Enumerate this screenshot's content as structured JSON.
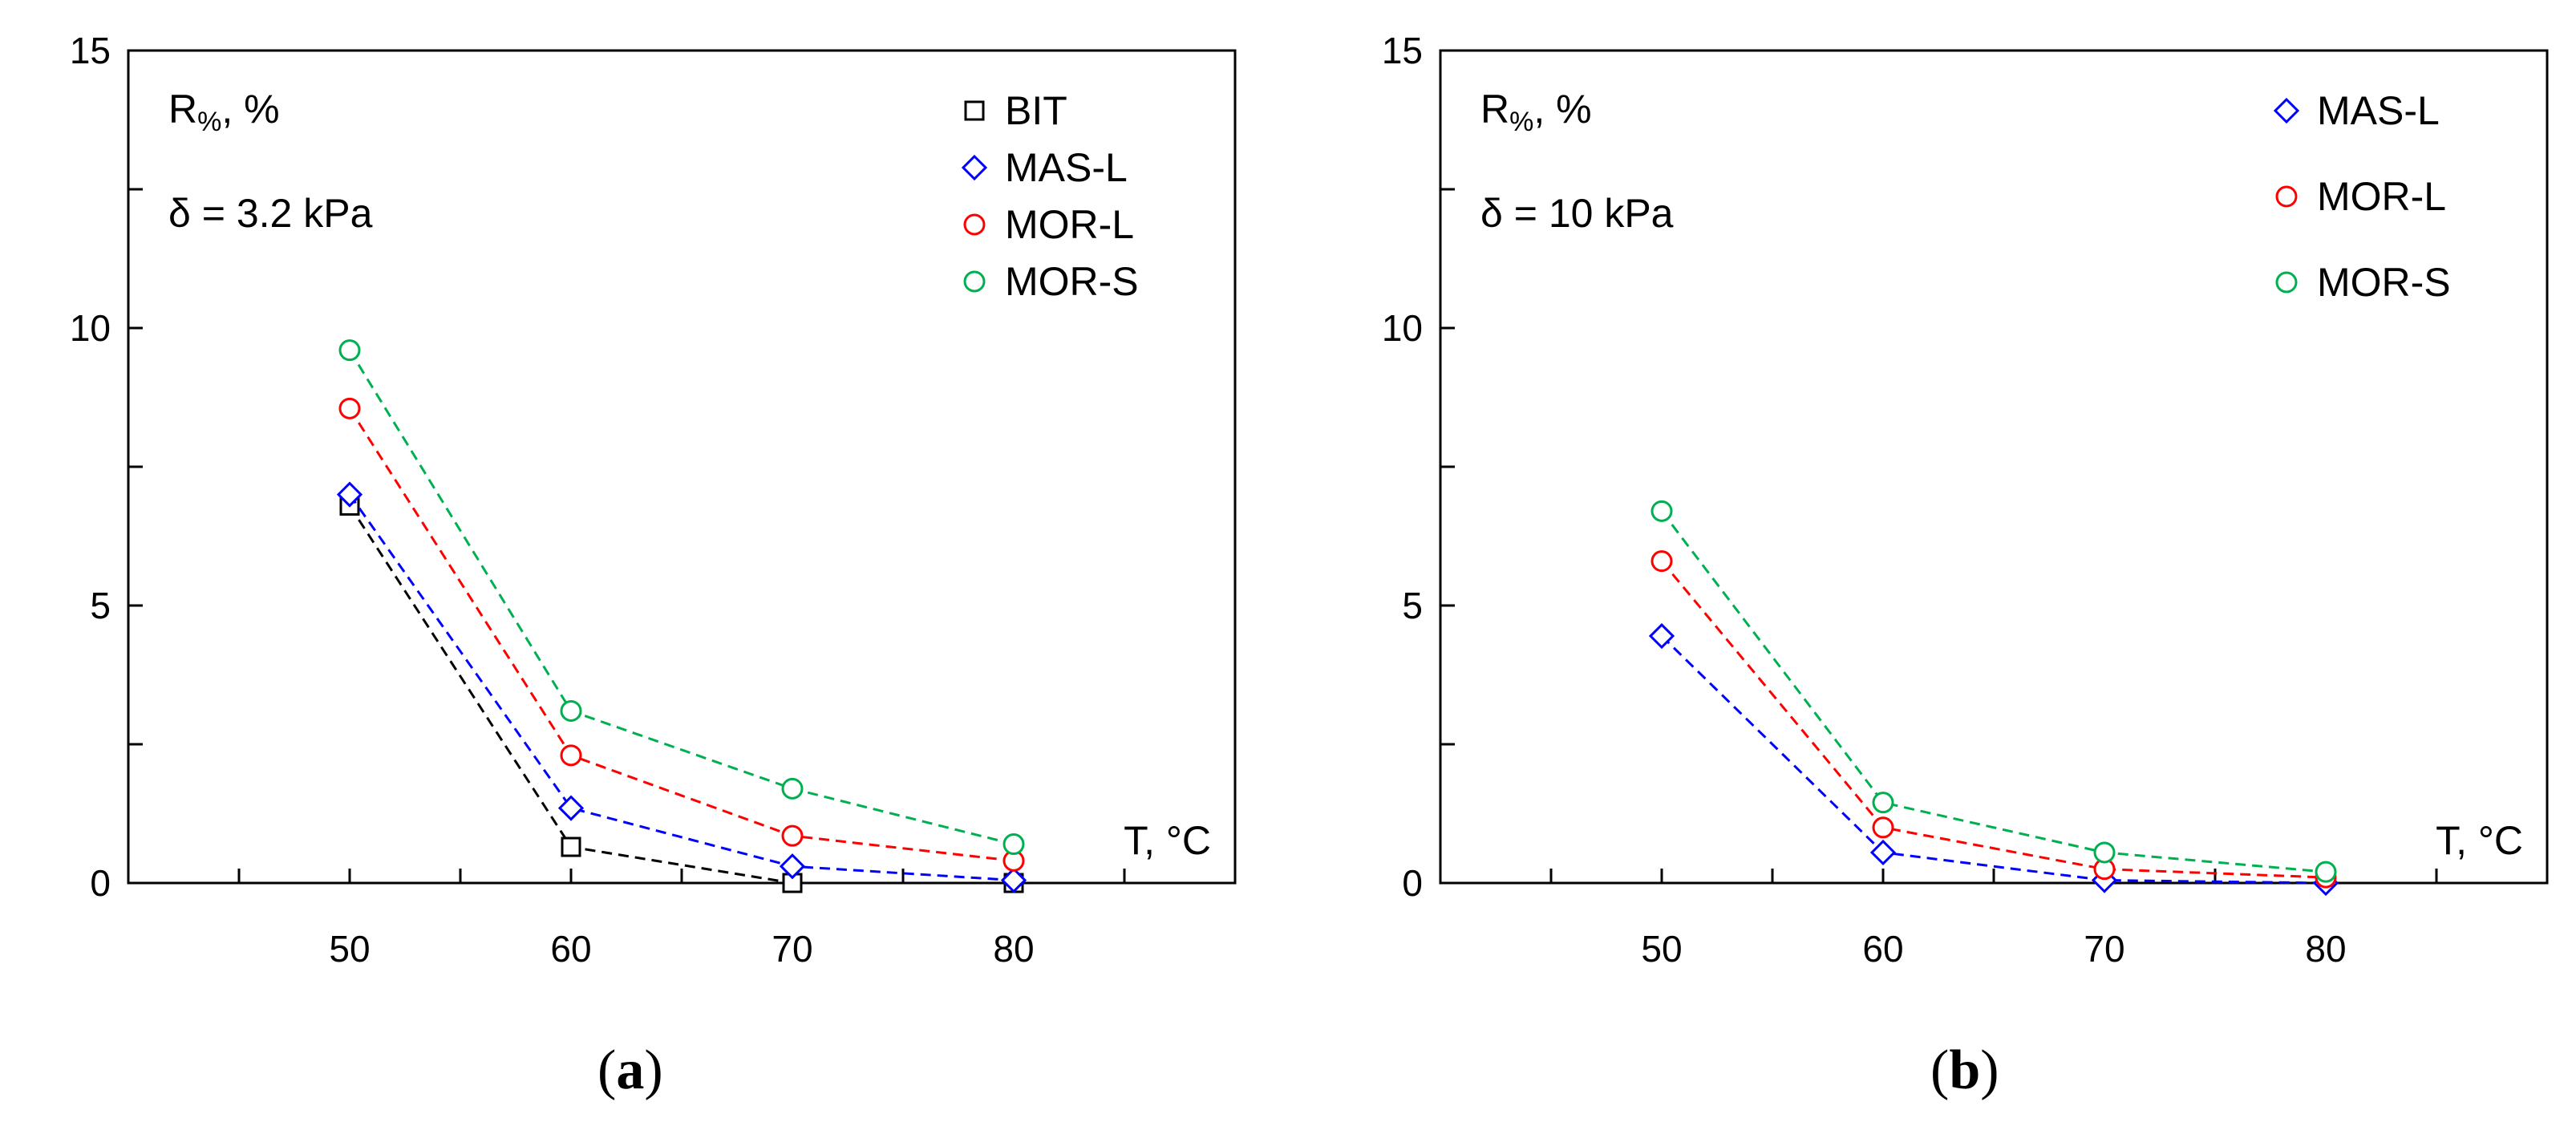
{
  "chart_data": [
    {
      "type": "line",
      "panel": "a",
      "x": [
        50,
        60,
        70,
        80
      ],
      "xlim": [
        40,
        90
      ],
      "xticks": [
        50,
        60,
        70,
        80
      ],
      "ylim": [
        0,
        15
      ],
      "yticks": [
        0,
        5,
        10,
        15
      ],
      "ylabel_main": "R",
      "ylabel_sub": "%",
      "ylabel_tail": ", %",
      "xlabel": "T, °C",
      "condition": "δ = 3.2 kPa",
      "legend_position": "top-right",
      "line_style": "dashed",
      "series": [
        {
          "name": "BIT",
          "marker": "square",
          "color": "#000000",
          "values": [
            6.8,
            0.65,
            0.0,
            0.0
          ]
        },
        {
          "name": "MAS-L",
          "marker": "diamond",
          "color": "#0000ff",
          "values": [
            7.0,
            1.35,
            0.3,
            0.05
          ]
        },
        {
          "name": "MOR-L",
          "marker": "circle",
          "color": "#ff0000",
          "values": [
            8.55,
            2.3,
            0.85,
            0.4
          ]
        },
        {
          "name": "MOR-S",
          "marker": "circle",
          "color": "#00b050",
          "values": [
            9.6,
            3.1,
            1.7,
            0.7
          ]
        }
      ]
    },
    {
      "type": "line",
      "panel": "b",
      "x": [
        50,
        60,
        70,
        80
      ],
      "xlim": [
        40,
        90
      ],
      "xticks": [
        50,
        60,
        70,
        80
      ],
      "ylim": [
        0,
        15
      ],
      "yticks": [
        0,
        5,
        10,
        15
      ],
      "ylabel_main": "R",
      "ylabel_sub": "%",
      "ylabel_tail": ", %",
      "xlabel": "T, °C",
      "condition": "δ = 10 kPa",
      "legend_position": "top-right",
      "line_style": "dashed",
      "series": [
        {
          "name": "MAS-L",
          "marker": "diamond",
          "color": "#0000ff",
          "values": [
            4.45,
            0.55,
            0.05,
            0.0
          ]
        },
        {
          "name": "MOR-L",
          "marker": "circle",
          "color": "#ff0000",
          "values": [
            5.8,
            1.0,
            0.25,
            0.1
          ]
        },
        {
          "name": "MOR-S",
          "marker": "circle",
          "color": "#00b050",
          "values": [
            6.7,
            1.45,
            0.55,
            0.2
          ]
        }
      ]
    }
  ],
  "captions": [
    {
      "open": "(",
      "letter": "a",
      "close": ")"
    },
    {
      "open": "(",
      "letter": "b",
      "close": ")"
    }
  ]
}
